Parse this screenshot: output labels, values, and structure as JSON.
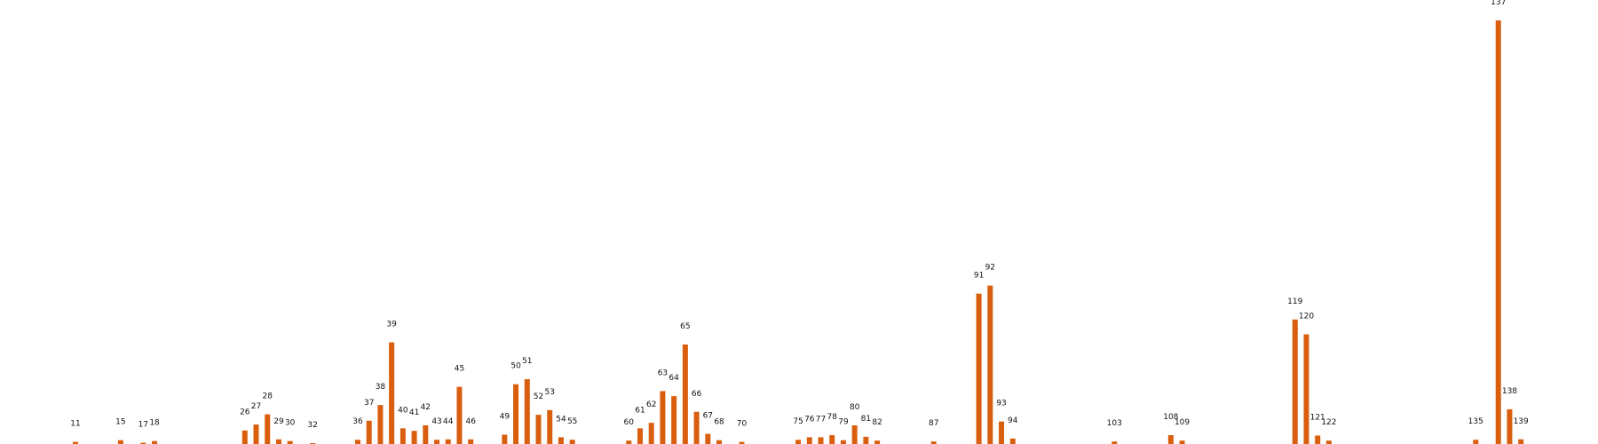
{
  "chart_data": {
    "type": "bar",
    "title": "",
    "xlabel": "",
    "ylabel": "",
    "grid": false,
    "legend": "none",
    "bar_color": "#d95f0e",
    "ylim": [
      0,
      100
    ],
    "categories": [
      "11",
      "15",
      "17",
      "18",
      "26",
      "27",
      "28",
      "29",
      "30",
      "32",
      "36",
      "37",
      "38",
      "39",
      "40",
      "41",
      "42",
      "43",
      "44",
      "45",
      "46",
      "49",
      "50",
      "51",
      "52",
      "53",
      "54",
      "55",
      "60",
      "61",
      "62",
      "63",
      "64",
      "65",
      "66",
      "67",
      "68",
      "70",
      "75",
      "76",
      "77",
      "78",
      "79",
      "80",
      "81",
      "82",
      "87",
      "91",
      "92",
      "93",
      "94",
      "103",
      "108",
      "109",
      "119",
      "120",
      "121",
      "122",
      "135",
      "137",
      "138",
      "139"
    ],
    "values": [
      0.5,
      0.9,
      0.3,
      0.7,
      3.2,
      4.6,
      7.0,
      1.1,
      0.7,
      0.2,
      1.0,
      5.5,
      9.2,
      24.0,
      3.7,
      3.1,
      4.4,
      1.0,
      1.1,
      13.5,
      1.1,
      2.2,
      14.1,
      15.3,
      6.9,
      8.0,
      1.6,
      1.0,
      0.8,
      3.7,
      5.0,
      12.5,
      11.3,
      23.5,
      7.6,
      2.4,
      0.9,
      0.5,
      1.0,
      1.6,
      1.6,
      2.1,
      0.9,
      4.4,
      1.7,
      0.8,
      0.6,
      35.5,
      37.4,
      5.3,
      1.3,
      0.6,
      2.1,
      0.8,
      29.4,
      25.9,
      2.0,
      0.8,
      1.0,
      100.0,
      8.2,
      1.1
    ]
  }
}
